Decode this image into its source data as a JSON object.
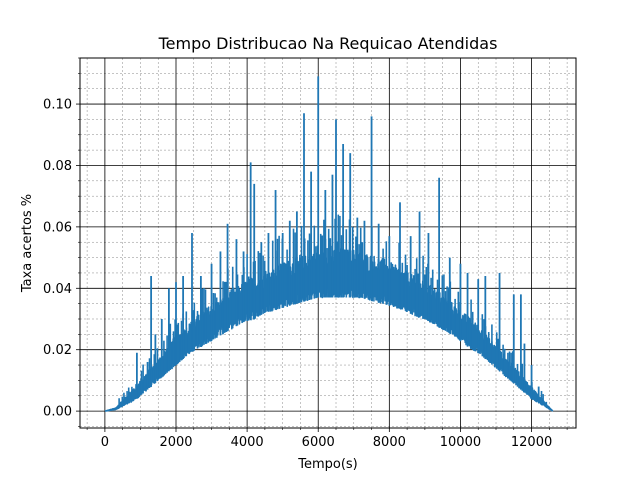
{
  "chart_data": {
    "type": "line",
    "title": "Tempo Distribucao Na Requicao Atendidas",
    "xlabel": "Tempo(s)",
    "ylabel": "Taxa acertos %",
    "xlim": [
      -700,
      13250
    ],
    "ylim": [
      -0.0055,
      0.115
    ],
    "xticks": [
      0,
      2000,
      4000,
      6000,
      8000,
      10000,
      12000
    ],
    "xtick_labels": [
      "0",
      "2000",
      "4000",
      "6000",
      "8000",
      "10000",
      "12000"
    ],
    "yticks": [
      0.0,
      0.02,
      0.04,
      0.06,
      0.08,
      0.1
    ],
    "ytick_labels": [
      "0.00",
      "0.02",
      "0.04",
      "0.06",
      "0.08",
      "0.10"
    ],
    "grid": true,
    "minor_grid": true,
    "color": "#1f77b4",
    "series": [
      {
        "x": [
          0,
          300,
          600,
          900,
          1200,
          1500,
          1800,
          2100,
          2400,
          2700,
          3000,
          3300,
          3600,
          3900,
          4200,
          4500,
          4800,
          5100,
          5400,
          5700,
          6000,
          6300,
          6600,
          6900,
          7200,
          7500,
          7800,
          8100,
          8400,
          8700,
          9000,
          9300,
          9600,
          9900,
          10200,
          10500,
          10800,
          11100,
          11400,
          11700,
          12000,
          12300,
          12600
        ],
        "lower": [
          0.0,
          0.0005,
          0.002,
          0.004,
          0.007,
          0.01,
          0.013,
          0.016,
          0.019,
          0.021,
          0.023,
          0.025,
          0.027,
          0.029,
          0.03,
          0.032,
          0.033,
          0.034,
          0.035,
          0.036,
          0.037,
          0.037,
          0.037,
          0.037,
          0.037,
          0.036,
          0.035,
          0.034,
          0.033,
          0.031,
          0.03,
          0.028,
          0.026,
          0.024,
          0.021,
          0.019,
          0.016,
          0.013,
          0.01,
          0.007,
          0.004,
          0.002,
          0.0
        ],
        "upper": [
          0.0,
          0.001,
          0.005,
          0.009,
          0.013,
          0.017,
          0.022,
          0.026,
          0.029,
          0.032,
          0.035,
          0.037,
          0.04,
          0.042,
          0.044,
          0.046,
          0.047,
          0.049,
          0.05,
          0.051,
          0.052,
          0.052,
          0.053,
          0.053,
          0.052,
          0.051,
          0.05,
          0.048,
          0.046,
          0.044,
          0.042,
          0.04,
          0.037,
          0.034,
          0.031,
          0.028,
          0.024,
          0.02,
          0.016,
          0.012,
          0.008,
          0.004,
          0.0
        ],
        "spikes": [
          [
            900,
            0.019
          ],
          [
            1200,
            0.016
          ],
          [
            1300,
            0.044
          ],
          [
            1420,
            0.025
          ],
          [
            1600,
            0.03
          ],
          [
            1800,
            0.04
          ],
          [
            2000,
            0.042
          ],
          [
            2200,
            0.044
          ],
          [
            2450,
            0.058
          ],
          [
            2700,
            0.044
          ],
          [
            3000,
            0.048
          ],
          [
            3250,
            0.052
          ],
          [
            3450,
            0.061
          ],
          [
            3700,
            0.056
          ],
          [
            3900,
            0.052
          ],
          [
            4100,
            0.081
          ],
          [
            4200,
            0.074
          ],
          [
            4400,
            0.055
          ],
          [
            4600,
            0.058
          ],
          [
            4800,
            0.072
          ],
          [
            5000,
            0.058
          ],
          [
            5200,
            0.062
          ],
          [
            5400,
            0.065
          ],
          [
            5600,
            0.097
          ],
          [
            5800,
            0.078
          ],
          [
            6000,
            0.109
          ],
          [
            6200,
            0.072
          ],
          [
            6400,
            0.077
          ],
          [
            6500,
            0.095
          ],
          [
            6700,
            0.087
          ],
          [
            6900,
            0.084
          ],
          [
            7100,
            0.063
          ],
          [
            7300,
            0.062
          ],
          [
            7500,
            0.096
          ],
          [
            7700,
            0.061
          ],
          [
            8000,
            0.057
          ],
          [
            8300,
            0.068
          ],
          [
            8600,
            0.057
          ],
          [
            8850,
            0.065
          ],
          [
            9100,
            0.058
          ],
          [
            9400,
            0.076
          ],
          [
            9700,
            0.05
          ],
          [
            10000,
            0.048
          ],
          [
            10200,
            0.045
          ],
          [
            10500,
            0.043
          ],
          [
            10700,
            0.044
          ],
          [
            11100,
            0.045
          ],
          [
            11500,
            0.038
          ],
          [
            11700,
            0.038
          ],
          [
            11800,
            0.022
          ],
          [
            12000,
            0.015
          ],
          [
            12200,
            0.008
          ]
        ]
      }
    ]
  }
}
